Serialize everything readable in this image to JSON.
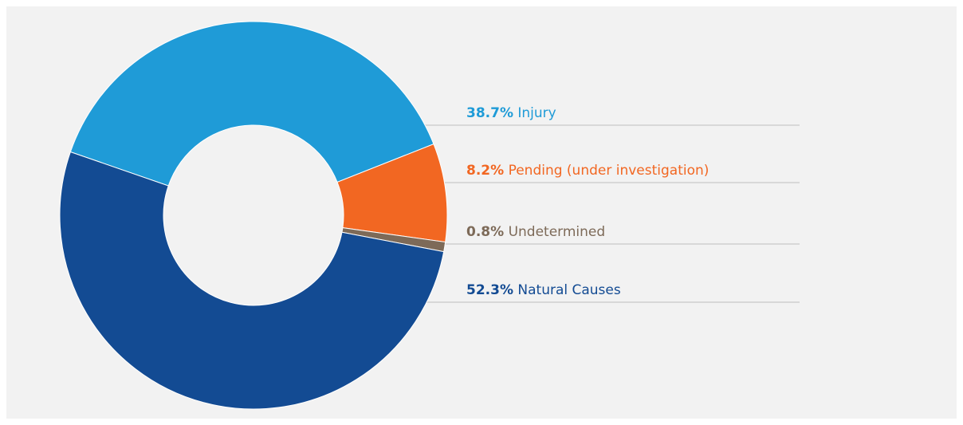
{
  "chart_data": {
    "type": "donut",
    "categories": [
      "Injury",
      "Pending (under investigation)",
      "Undetermined",
      "Natural Causes"
    ],
    "values": [
      38.7,
      8.2,
      0.8,
      52.3
    ],
    "value_labels": [
      "38.7%",
      "8.2%",
      "0.8%",
      "52.3%"
    ],
    "colors": [
      "#1f9bd7",
      "#f26722",
      "#7d6a58",
      "#134b93"
    ]
  }
}
